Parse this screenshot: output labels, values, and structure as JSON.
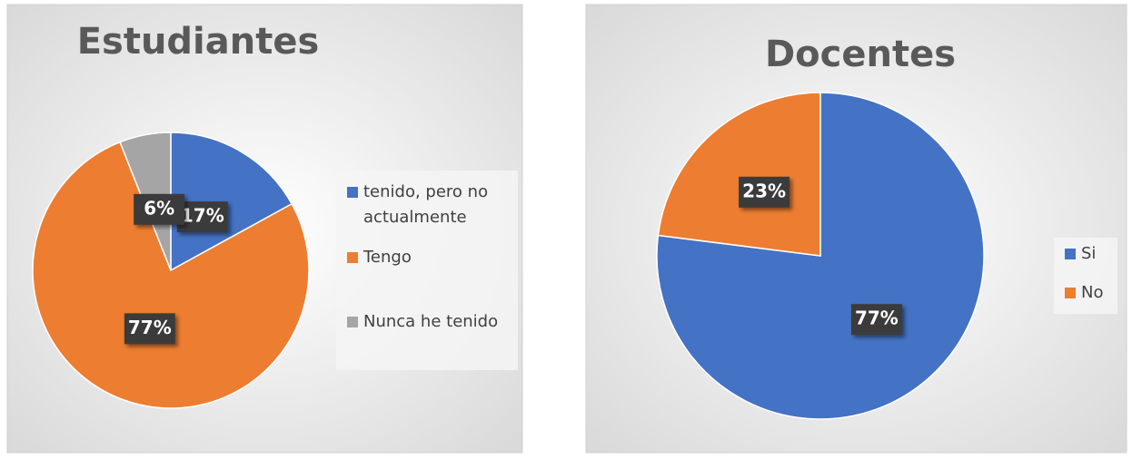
{
  "chart_data": [
    {
      "type": "pie",
      "title": "Estudiantes",
      "categories": [
        "tenido, pero no actualmente",
        "Tengo",
        "Nunca he tenido"
      ],
      "values": [
        17,
        77,
        6
      ],
      "value_labels": [
        "17%",
        "77%",
        "6%"
      ],
      "colors": [
        "#4472c4",
        "#ed7d31",
        "#a5a5a5"
      ],
      "legend": "right"
    },
    {
      "type": "pie",
      "title": "Docentes",
      "categories": [
        "Si",
        "No"
      ],
      "values": [
        77,
        23
      ],
      "value_labels": [
        "77%",
        "23%"
      ],
      "colors": [
        "#4472c4",
        "#ed7d31"
      ],
      "legend": "right"
    }
  ]
}
